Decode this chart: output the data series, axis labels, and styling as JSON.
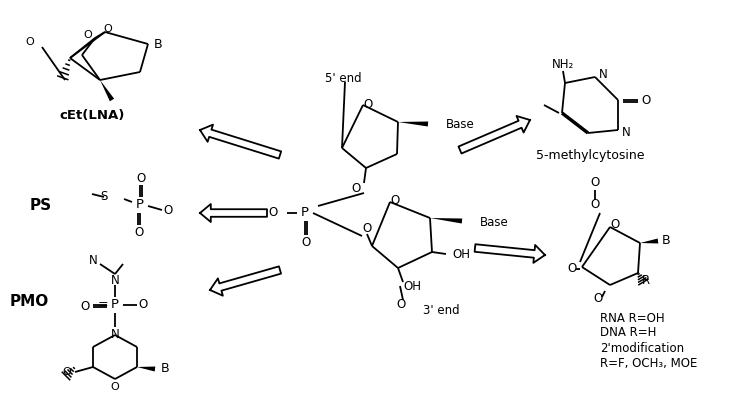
{
  "bg_color": "#ffffff",
  "text_color": "#000000",
  "figsize": [
    7.36,
    3.95
  ],
  "dpi": 100,
  "title": "",
  "labels": {
    "cEt_LNA": "cEt(LNA)",
    "PS": "PS",
    "PMO": "PMO",
    "five_prime": "5' end",
    "three_prime": "3' end",
    "base1": "Base",
    "base2": "Base",
    "five_methyl": "5-methylcytosine",
    "rna_line1": "RNA R=OH",
    "rna_line2": "DNA R=H",
    "rna_line3": "2'modification",
    "rna_line4": "R=F, OCH₃, MOE"
  }
}
